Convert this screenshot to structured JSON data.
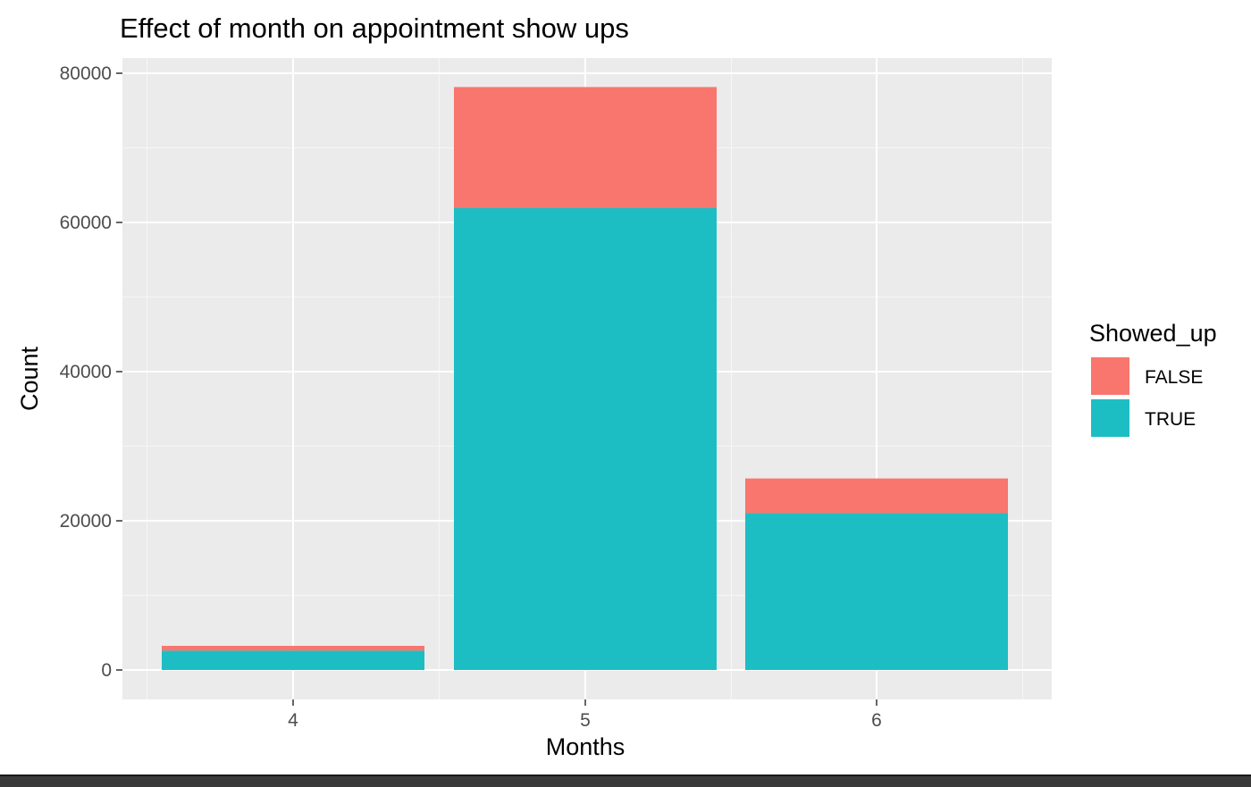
{
  "chart_data": {
    "type": "bar",
    "stacked": true,
    "title": "Effect of month on appointment show ups",
    "xlabel": "Months",
    "ylabel": "Count",
    "categories": [
      "4",
      "5",
      "6"
    ],
    "series": [
      {
        "name": "FALSE",
        "color": "#F8766D",
        "values": [
          633,
          16232,
          4654
        ]
      },
      {
        "name": "TRUE",
        "color": "#1CBEC4",
        "values": [
          2602,
          61919,
          21023
        ]
      }
    ],
    "ylim": [
      0,
      80000
    ],
    "y_ticks": [
      0,
      20000,
      40000,
      60000,
      80000
    ],
    "grid": true,
    "panel_background": "#EBEBEB",
    "legend": {
      "title": "Showed_up",
      "position": "right",
      "entries": [
        "FALSE",
        "TRUE"
      ]
    }
  }
}
